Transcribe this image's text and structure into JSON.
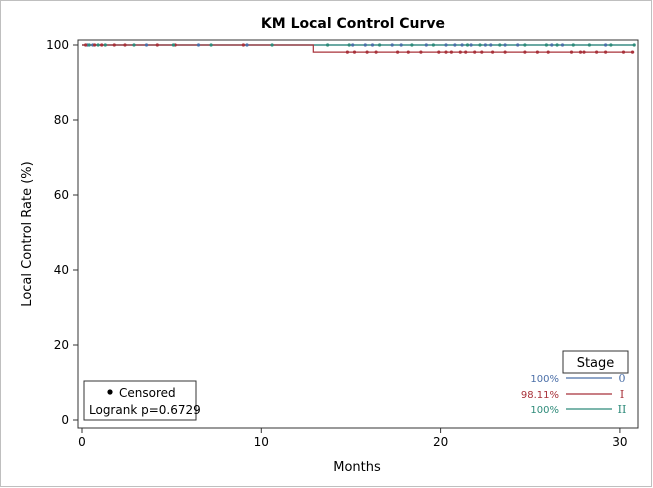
{
  "chart_data": {
    "type": "line",
    "title": "KM Local Control Curve",
    "xlabel": "Months",
    "ylabel": "Local Control Rate (%)",
    "xlim": [
      0,
      31
    ],
    "ylim": [
      0,
      100
    ],
    "x_ticks": [
      0,
      10,
      20,
      30
    ],
    "y_ticks": [
      0,
      20,
      40,
      60,
      80,
      100
    ],
    "grid": false,
    "step": true,
    "legend_title": "Stage",
    "legend_position": "bottom-right",
    "series": [
      {
        "name": "0",
        "color": "#4b6fa8",
        "rate_label": "100%",
        "x": [
          0,
          30.8
        ],
        "y": [
          100,
          100
        ],
        "censored_x": [
          0.3,
          0.6,
          3.6,
          6.5,
          9.2,
          15.1,
          15.8,
          16.2,
          17.3,
          17.8,
          19.2,
          20.3,
          20.8,
          21.2,
          21.7,
          22.5,
          22.8,
          23.6,
          24.3,
          26.2,
          26.8,
          29.2
        ]
      },
      {
        "name": "I",
        "color": "#a8323a",
        "rate_label": "98.11%",
        "x": [
          0,
          12.9,
          12.9,
          30.8
        ],
        "y": [
          100,
          100,
          98.11,
          98.11
        ],
        "censored_x": [
          0.2,
          0.7,
          1.1,
          1.8,
          2.4,
          4.2,
          5.2,
          9.0,
          14.8,
          15.2,
          15.9,
          16.4,
          17.6,
          18.2,
          18.9,
          19.9,
          20.3,
          20.6,
          21.1,
          21.4,
          21.9,
          22.3,
          22.9,
          23.6,
          24.7,
          25.4,
          26.0,
          27.3,
          27.8,
          28.0,
          28.7,
          29.2,
          30.2,
          30.7
        ]
      },
      {
        "name": "II",
        "color": "#2e8b7a",
        "rate_label": "100%",
        "x": [
          0,
          30.8
        ],
        "y": [
          100,
          100
        ],
        "censored_x": [
          0.4,
          0.9,
          1.3,
          2.9,
          5.1,
          7.2,
          10.6,
          13.7,
          14.9,
          16.6,
          18.4,
          19.6,
          21.5,
          22.2,
          23.3,
          24.7,
          25.9,
          26.5,
          27.4,
          28.3,
          29.5,
          30.8
        ]
      }
    ],
    "annotations": {
      "censored_label": "Censored",
      "logrank": "Logrank p=0.6729"
    }
  }
}
